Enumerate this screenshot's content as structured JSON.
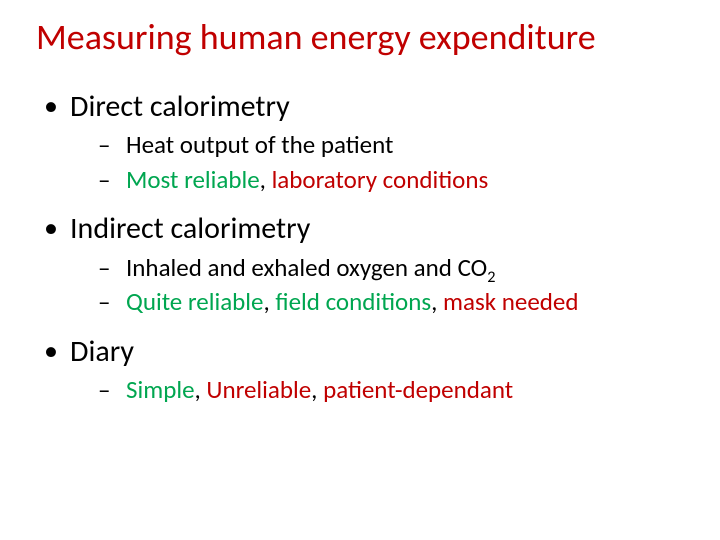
{
  "colors": {
    "title": "#c00000",
    "body": "#000000",
    "green": "#00a650",
    "red": "#c00000",
    "background": "#ffffff"
  },
  "fonts": {
    "title_size": 36,
    "lvl1_size": 30,
    "lvl2_size": 25,
    "family": "Calibri"
  },
  "slide": {
    "title": "Measuring human energy expenditure",
    "items": [
      {
        "label": "Direct calorimetry",
        "sub": [
          {
            "runs": [
              {
                "t": "Heat output of the patient",
                "c": "body"
              }
            ]
          },
          {
            "runs": [
              {
                "t": "Most reliable",
                "c": "green"
              },
              {
                "t": ", ",
                "c": "body"
              },
              {
                "t": "laboratory conditions",
                "c": "red"
              }
            ]
          }
        ]
      },
      {
        "label": "Indirect calorimetry",
        "sub": [
          {
            "runs": [
              {
                "t": "Inhaled and exhaled oxygen and CO",
                "c": "body"
              },
              {
                "t": "2",
                "c": "body",
                "sub": true
              }
            ]
          },
          {
            "runs": [
              {
                "t": "Quite reliable",
                "c": "green"
              },
              {
                "t": ", ",
                "c": "body"
              },
              {
                "t": "field conditions",
                "c": "green"
              },
              {
                "t": ", ",
                "c": "body"
              },
              {
                "t": "mask needed",
                "c": "red"
              }
            ]
          }
        ]
      },
      {
        "label": "Diary",
        "sub": [
          {
            "runs": [
              {
                "t": "Simple",
                "c": "green"
              },
              {
                "t": ", ",
                "c": "body"
              },
              {
                "t": "Unreliable",
                "c": "red"
              },
              {
                "t": ", ",
                "c": "body"
              },
              {
                "t": "patient-dependant",
                "c": "red"
              }
            ]
          }
        ]
      }
    ]
  }
}
